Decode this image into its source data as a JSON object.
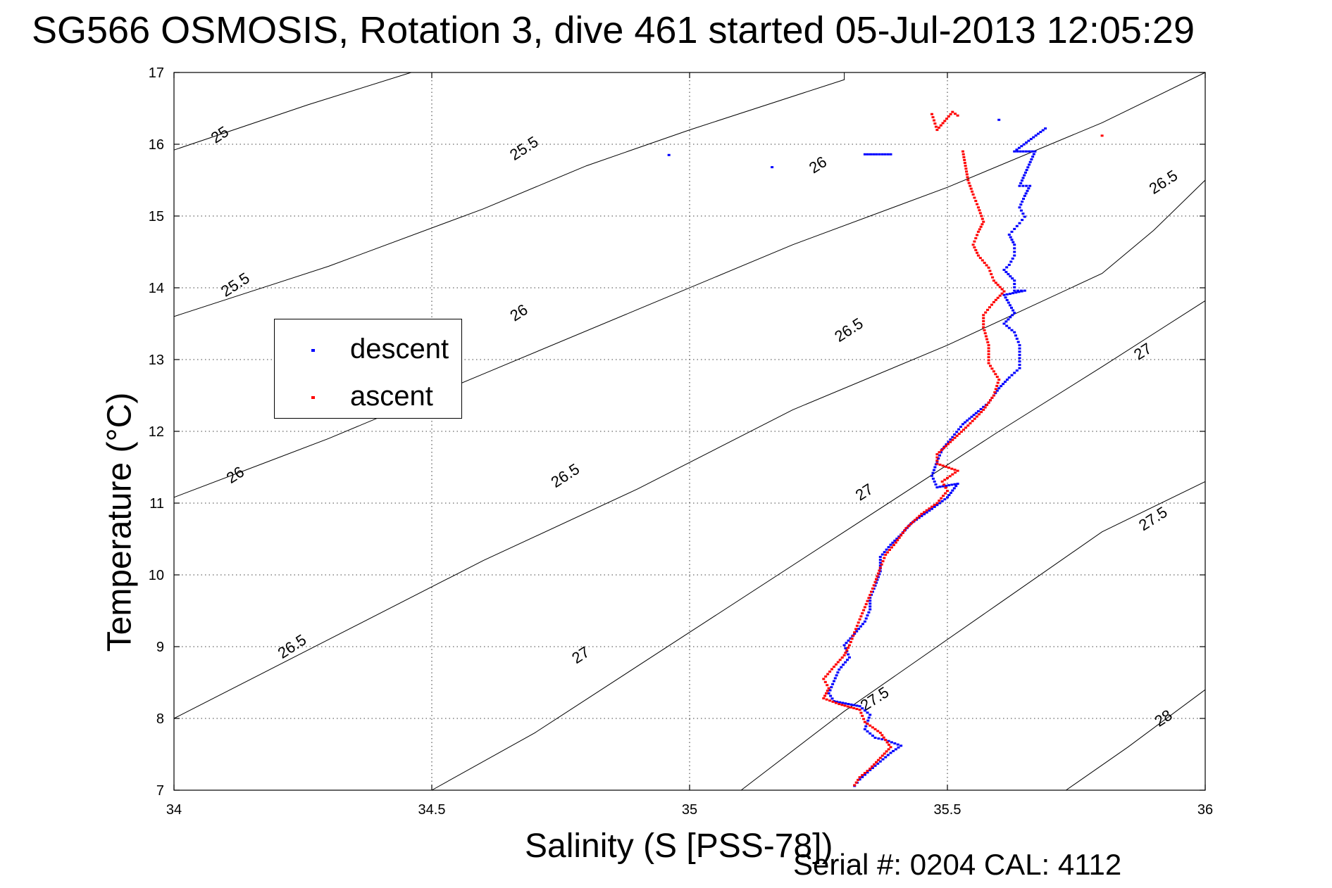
{
  "page": {
    "title": "SG566 OSMOSIS, Rotation 3, dive 461 started 05-Jul-2013 12:05:29",
    "serial_text": "Serial #: 0204  CAL: 4112"
  },
  "chart_data": {
    "type": "scatter",
    "title": "SG566 OSMOSIS, Rotation 3, dive 461 started 05-Jul-2013 12:05:29",
    "xlabel": "Salinity (S [PSS-78])",
    "ylabel": "Temperature (°C)",
    "xlim": [
      34,
      36
    ],
    "ylim": [
      7,
      17
    ],
    "xticks": [
      "34",
      "34.5",
      "35",
      "35.5",
      "36"
    ],
    "yticks": [
      "7",
      "8",
      "9",
      "10",
      "11",
      "12",
      "13",
      "14",
      "15",
      "16",
      "17"
    ],
    "grid": true,
    "legend_position": "left",
    "legend": [
      {
        "name": "descent",
        "color": "#0000ff"
      },
      {
        "name": "ascent",
        "color": "#ff0000"
      }
    ],
    "contour_levels": [
      "25",
      "25.5",
      "26",
      "26.5",
      "27",
      "27.5",
      "28"
    ],
    "contour_labels": [
      {
        "text": "25",
        "x": 34.09,
        "y": 16.12
      },
      {
        "text": "25.5",
        "x": 34.68,
        "y": 15.93
      },
      {
        "text": "26",
        "x": 35.25,
        "y": 15.7
      },
      {
        "text": "26.5",
        "x": 35.92,
        "y": 15.46
      },
      {
        "text": "25.5",
        "x": 34.12,
        "y": 14.03
      },
      {
        "text": "26",
        "x": 34.67,
        "y": 13.64
      },
      {
        "text": "26.5",
        "x": 35.31,
        "y": 13.4
      },
      {
        "text": "27",
        "x": 35.88,
        "y": 13.1
      },
      {
        "text": "26",
        "x": 34.12,
        "y": 11.38
      },
      {
        "text": "26.5",
        "x": 34.76,
        "y": 11.37
      },
      {
        "text": "27",
        "x": 35.34,
        "y": 11.14
      },
      {
        "text": "27.5",
        "x": 35.9,
        "y": 10.77
      },
      {
        "text": "26.5",
        "x": 34.23,
        "y": 8.99
      },
      {
        "text": "27",
        "x": 34.79,
        "y": 8.87
      },
      {
        "text": "27.5",
        "x": 35.36,
        "y": 8.26
      },
      {
        "text": "28",
        "x": 35.92,
        "y": 7.99
      }
    ],
    "contours": [
      {
        "level": "25",
        "points": [
          [
            34.0,
            15.92
          ],
          [
            34.26,
            16.55
          ],
          [
            34.46,
            17.0
          ]
        ]
      },
      {
        "level": "25.5",
        "points": [
          [
            34.0,
            13.6
          ],
          [
            34.3,
            14.3
          ],
          [
            34.6,
            15.1
          ],
          [
            34.8,
            15.7
          ],
          [
            35.0,
            16.2
          ],
          [
            35.3,
            16.9
          ],
          [
            35.3,
            17.0
          ]
        ]
      },
      {
        "level": "26",
        "points": [
          [
            34.0,
            11.08
          ],
          [
            34.3,
            11.9
          ],
          [
            34.6,
            12.8
          ],
          [
            34.9,
            13.7
          ],
          [
            35.2,
            14.6
          ],
          [
            35.5,
            15.4
          ],
          [
            35.8,
            16.3
          ],
          [
            36.0,
            17.0
          ]
        ]
      },
      {
        "level": "26.5",
        "points": [
          [
            34.0,
            8.0
          ],
          [
            34.3,
            9.1
          ],
          [
            34.6,
            10.2
          ],
          [
            34.9,
            11.2
          ],
          [
            35.2,
            12.3
          ],
          [
            35.5,
            13.2
          ],
          [
            35.8,
            14.2
          ],
          [
            35.9,
            14.8
          ],
          [
            36.0,
            15.5
          ]
        ]
      },
      {
        "level": "27",
        "points": [
          [
            34.5,
            7.0
          ],
          [
            34.7,
            7.8
          ],
          [
            35.0,
            9.2
          ],
          [
            35.3,
            10.6
          ],
          [
            35.6,
            12.0
          ],
          [
            35.8,
            12.9
          ],
          [
            36.0,
            13.82
          ]
        ]
      },
      {
        "level": "27.5",
        "points": [
          [
            35.1,
            7.0
          ],
          [
            35.3,
            8.1
          ],
          [
            35.6,
            9.6
          ],
          [
            35.8,
            10.6
          ],
          [
            36.0,
            11.3
          ]
        ]
      },
      {
        "level": "28",
        "points": [
          [
            35.73,
            7.0
          ],
          [
            35.85,
            7.6
          ],
          [
            36.0,
            8.4
          ]
        ]
      }
    ],
    "series": [
      {
        "name": "descent",
        "color": "#0000ff",
        "points": [
          [
            34.96,
            15.85
          ],
          [
            35.16,
            15.68
          ],
          [
            35.34,
            15.86
          ],
          [
            35.39,
            15.86
          ],
          [
            35.6,
            16.34
          ],
          [
            35.69,
            16.22
          ],
          [
            35.63,
            15.9
          ],
          [
            35.67,
            15.9
          ],
          [
            35.64,
            15.42
          ],
          [
            35.66,
            15.42
          ],
          [
            35.65,
            15.28
          ],
          [
            35.64,
            15.12
          ],
          [
            35.65,
            14.99
          ],
          [
            35.64,
            14.9
          ],
          [
            35.63,
            14.82
          ],
          [
            35.62,
            14.74
          ],
          [
            35.63,
            14.6
          ],
          [
            35.63,
            14.45
          ],
          [
            35.62,
            14.32
          ],
          [
            35.61,
            14.25
          ],
          [
            35.63,
            14.1
          ],
          [
            35.63,
            13.96
          ],
          [
            35.65,
            13.96
          ],
          [
            35.61,
            13.9
          ],
          [
            35.63,
            13.65
          ],
          [
            35.61,
            13.5
          ],
          [
            35.63,
            13.38
          ],
          [
            35.64,
            13.2
          ],
          [
            35.64,
            13.02
          ],
          [
            35.64,
            12.88
          ],
          [
            35.62,
            12.75
          ],
          [
            35.6,
            12.6
          ],
          [
            35.58,
            12.4
          ],
          [
            35.56,
            12.28
          ],
          [
            35.53,
            12.1
          ],
          [
            35.51,
            11.92
          ],
          [
            35.49,
            11.75
          ],
          [
            35.48,
            11.58
          ],
          [
            35.47,
            11.38
          ],
          [
            35.48,
            11.22
          ],
          [
            35.52,
            11.27
          ],
          [
            35.5,
            11.08
          ],
          [
            35.47,
            10.92
          ],
          [
            35.43,
            10.72
          ],
          [
            35.41,
            10.56
          ],
          [
            35.39,
            10.42
          ],
          [
            35.37,
            10.25
          ],
          [
            35.37,
            10.05
          ],
          [
            35.36,
            9.85
          ],
          [
            35.35,
            9.68
          ],
          [
            35.35,
            9.52
          ],
          [
            35.34,
            9.35
          ],
          [
            35.32,
            9.18
          ],
          [
            35.3,
            9.02
          ],
          [
            35.31,
            8.85
          ],
          [
            35.29,
            8.68
          ],
          [
            35.28,
            8.52
          ],
          [
            35.27,
            8.35
          ],
          [
            35.28,
            8.24
          ],
          [
            35.33,
            8.17
          ],
          [
            35.35,
            8.05
          ],
          [
            35.34,
            7.85
          ],
          [
            35.36,
            7.73
          ],
          [
            35.38,
            7.7
          ],
          [
            35.41,
            7.62
          ],
          [
            35.39,
            7.52
          ],
          [
            35.37,
            7.4
          ],
          [
            35.35,
            7.28
          ],
          [
            35.33,
            7.15
          ],
          [
            35.32,
            7.06
          ]
        ]
      },
      {
        "name": "ascent",
        "color": "#ff0000",
        "points": [
          [
            35.32,
            7.07
          ],
          [
            35.33,
            7.18
          ],
          [
            35.35,
            7.3
          ],
          [
            35.37,
            7.45
          ],
          [
            35.39,
            7.6
          ],
          [
            35.37,
            7.8
          ],
          [
            35.34,
            7.95
          ],
          [
            35.33,
            8.12
          ],
          [
            35.29,
            8.2
          ],
          [
            35.26,
            8.28
          ],
          [
            35.27,
            8.42
          ],
          [
            35.26,
            8.55
          ],
          [
            35.28,
            8.72
          ],
          [
            35.3,
            8.88
          ],
          [
            35.31,
            9.02
          ],
          [
            35.32,
            9.2
          ],
          [
            35.33,
            9.38
          ],
          [
            35.34,
            9.55
          ],
          [
            35.35,
            9.72
          ],
          [
            35.36,
            9.9
          ],
          [
            35.37,
            10.1
          ],
          [
            35.38,
            10.28
          ],
          [
            35.4,
            10.45
          ],
          [
            35.42,
            10.65
          ],
          [
            35.45,
            10.85
          ],
          [
            35.48,
            11.0
          ],
          [
            35.5,
            11.17
          ],
          [
            35.49,
            11.3
          ],
          [
            35.52,
            11.45
          ],
          [
            35.48,
            11.55
          ],
          [
            35.48,
            11.68
          ],
          [
            35.51,
            11.88
          ],
          [
            35.54,
            12.08
          ],
          [
            35.57,
            12.3
          ],
          [
            35.59,
            12.5
          ],
          [
            35.6,
            12.72
          ],
          [
            35.58,
            12.95
          ],
          [
            35.58,
            13.2
          ],
          [
            35.57,
            13.45
          ],
          [
            35.57,
            13.62
          ],
          [
            35.59,
            13.8
          ],
          [
            35.61,
            13.95
          ],
          [
            35.59,
            14.1
          ],
          [
            35.58,
            14.28
          ],
          [
            35.56,
            14.45
          ],
          [
            35.55,
            14.6
          ],
          [
            35.56,
            14.78
          ],
          [
            35.57,
            14.92
          ],
          [
            35.56,
            15.12
          ],
          [
            35.55,
            15.3
          ],
          [
            35.54,
            15.5
          ],
          [
            35.53,
            15.9
          ],
          [
            35.47,
            16.42
          ],
          [
            35.48,
            16.2
          ],
          [
            35.51,
            16.45
          ],
          [
            35.52,
            16.4
          ],
          [
            35.8,
            16.12
          ]
        ]
      }
    ]
  }
}
